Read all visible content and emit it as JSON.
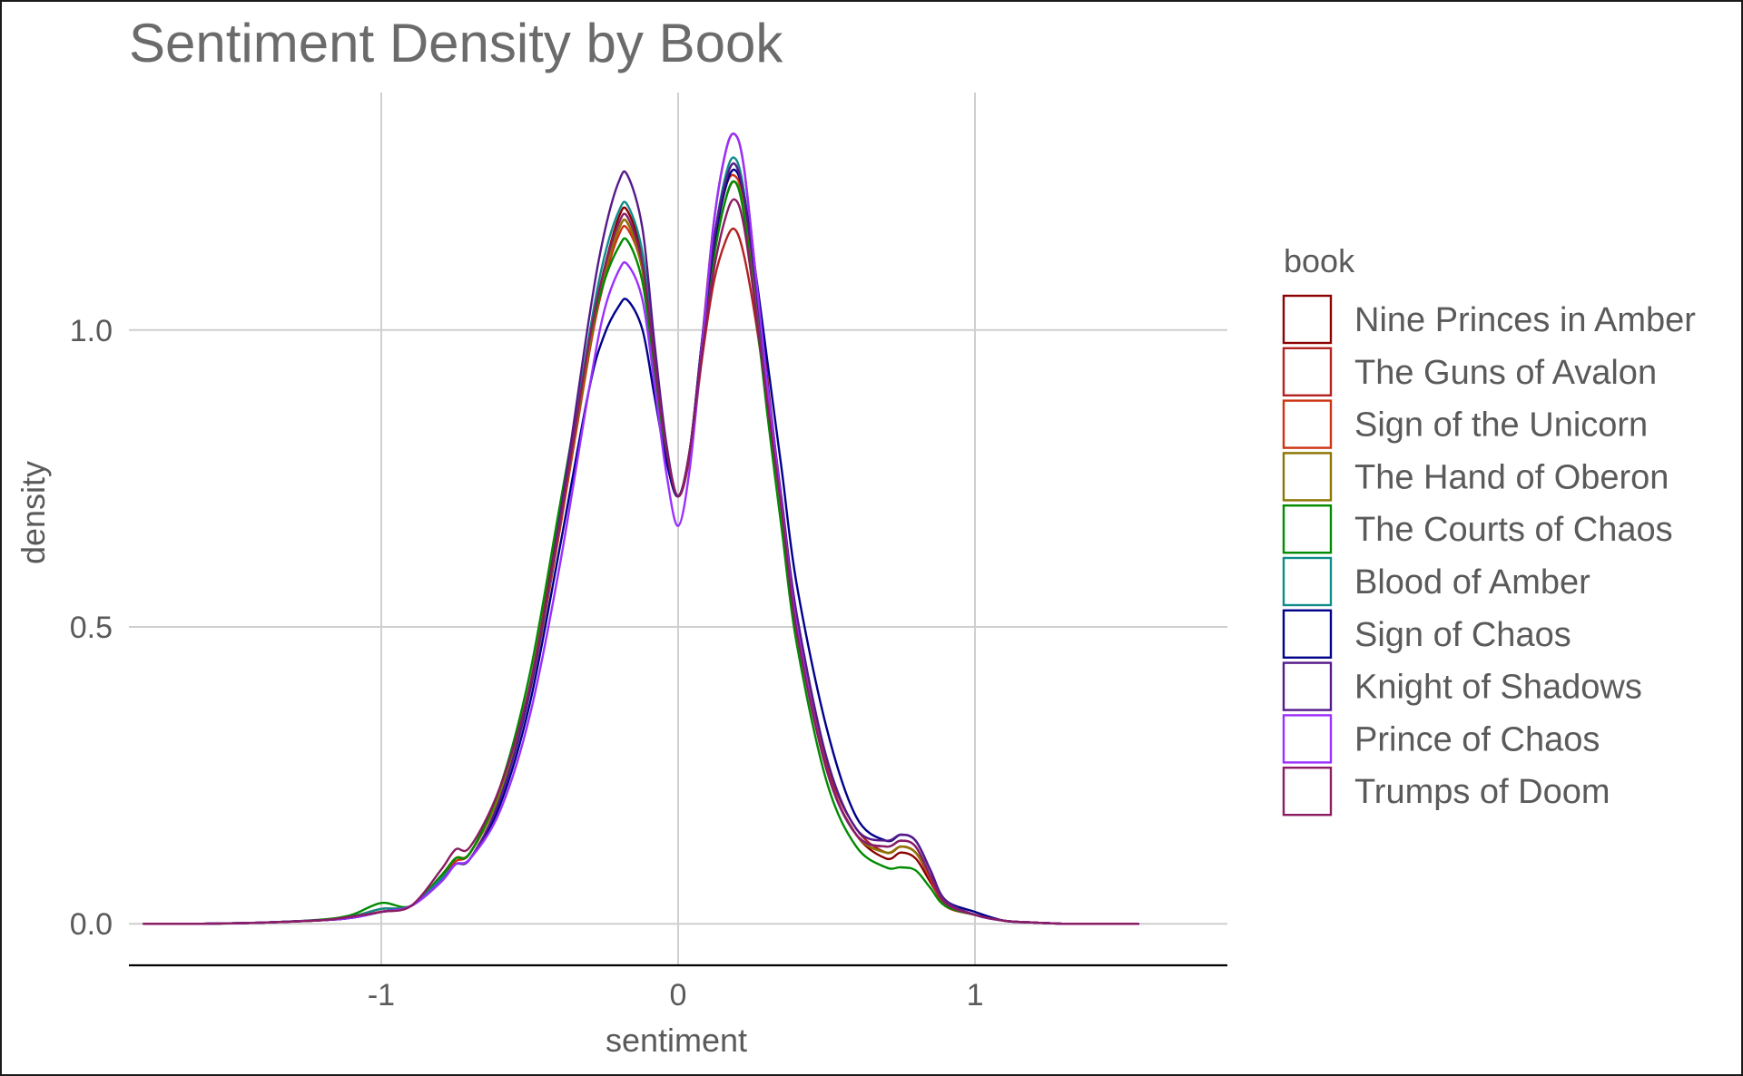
{
  "chart_data": {
    "type": "line",
    "title": "Sentiment Density by Book",
    "xlabel": "sentiment",
    "ylabel": "density",
    "xlim": [
      -1.85,
      1.85
    ],
    "ylim": [
      -0.07,
      1.4
    ],
    "x_ticks": [
      -1,
      0,
      1
    ],
    "x_tick_labels": [
      "-1",
      "0",
      "1"
    ],
    "y_ticks": [
      0,
      0.5,
      1
    ],
    "y_tick_labels": [
      "0.0",
      "0.5",
      "1.0"
    ],
    "grid": true,
    "legend": {
      "title": "book",
      "placement": "right"
    },
    "x": [
      -1.8,
      -1.6,
      -1.4,
      -1.2,
      -1.1,
      -1.0,
      -0.9,
      -0.8,
      -0.75,
      -0.7,
      -0.6,
      -0.5,
      -0.4,
      -0.3,
      -0.25,
      -0.2,
      -0.17,
      -0.12,
      -0.08,
      -0.04,
      0.0,
      0.04,
      0.08,
      0.12,
      0.16,
      0.19,
      0.22,
      0.26,
      0.3,
      0.35,
      0.4,
      0.5,
      0.6,
      0.7,
      0.75,
      0.8,
      0.85,
      0.9,
      1.0,
      1.1,
      1.2,
      1.3,
      1.4,
      1.55
    ],
    "series": [
      {
        "name": "Nine Princes in Amber",
        "color": "#8B0000",
        "values": [
          0.0,
          0.0,
          0.002,
          0.006,
          0.01,
          0.02,
          0.03,
          0.08,
          0.11,
          0.12,
          0.22,
          0.4,
          0.68,
          0.98,
          1.1,
          1.19,
          1.2,
          1.12,
          0.95,
          0.8,
          0.72,
          0.8,
          0.98,
          1.18,
          1.3,
          1.33,
          1.28,
          1.1,
          0.92,
          0.7,
          0.5,
          0.26,
          0.15,
          0.11,
          0.12,
          0.11,
          0.07,
          0.035,
          0.015,
          0.005,
          0.002,
          0.0,
          0.0,
          0.0
        ]
      },
      {
        "name": "The Guns of Avalon",
        "color": "#B22222",
        "values": [
          0.0,
          0.0,
          0.002,
          0.006,
          0.01,
          0.02,
          0.03,
          0.08,
          0.11,
          0.12,
          0.22,
          0.39,
          0.66,
          0.97,
          1.09,
          1.17,
          1.18,
          1.1,
          0.94,
          0.8,
          0.72,
          0.79,
          0.95,
          1.08,
          1.15,
          1.17,
          1.13,
          1.02,
          0.88,
          0.7,
          0.5,
          0.27,
          0.16,
          0.12,
          0.13,
          0.12,
          0.08,
          0.035,
          0.015,
          0.005,
          0.002,
          0.0,
          0.0,
          0.0
        ]
      },
      {
        "name": "Sign of the Unicorn",
        "color": "#CC3311",
        "values": [
          0.0,
          0.0,
          0.002,
          0.006,
          0.012,
          0.025,
          0.03,
          0.075,
          0.105,
          0.12,
          0.22,
          0.39,
          0.66,
          0.96,
          1.08,
          1.16,
          1.17,
          1.1,
          0.94,
          0.8,
          0.72,
          0.8,
          0.97,
          1.14,
          1.24,
          1.26,
          1.22,
          1.07,
          0.9,
          0.7,
          0.5,
          0.26,
          0.15,
          0.12,
          0.13,
          0.12,
          0.075,
          0.03,
          0.015,
          0.005,
          0.002,
          0.0,
          0.0,
          0.0
        ]
      },
      {
        "name": "The Hand of Oberon",
        "color": "#8B7500",
        "values": [
          0.0,
          0.0,
          0.002,
          0.006,
          0.012,
          0.025,
          0.03,
          0.08,
          0.11,
          0.12,
          0.22,
          0.4,
          0.67,
          0.97,
          1.09,
          1.17,
          1.18,
          1.1,
          0.94,
          0.8,
          0.72,
          0.8,
          0.97,
          1.13,
          1.22,
          1.25,
          1.21,
          1.06,
          0.89,
          0.69,
          0.5,
          0.26,
          0.15,
          0.12,
          0.13,
          0.12,
          0.08,
          0.035,
          0.015,
          0.005,
          0.002,
          0.0,
          0.0,
          0.0
        ]
      },
      {
        "name": "The Courts of Chaos",
        "color": "#008B00",
        "values": [
          0.0,
          0.0,
          0.002,
          0.007,
          0.015,
          0.035,
          0.03,
          0.08,
          0.11,
          0.12,
          0.23,
          0.42,
          0.7,
          0.98,
          1.08,
          1.14,
          1.15,
          1.08,
          0.93,
          0.79,
          0.72,
          0.8,
          0.97,
          1.12,
          1.22,
          1.25,
          1.2,
          1.04,
          0.86,
          0.66,
          0.47,
          0.24,
          0.13,
          0.095,
          0.095,
          0.09,
          0.06,
          0.03,
          0.015,
          0.005,
          0.002,
          0.0,
          0.0,
          0.0
        ]
      },
      {
        "name": "Blood of Amber",
        "color": "#108B8B",
        "values": [
          0.0,
          0.0,
          0.002,
          0.006,
          0.012,
          0.025,
          0.03,
          0.075,
          0.1,
          0.11,
          0.21,
          0.39,
          0.67,
          0.99,
          1.12,
          1.2,
          1.21,
          1.13,
          0.96,
          0.8,
          0.72,
          0.8,
          0.98,
          1.15,
          1.26,
          1.29,
          1.24,
          1.08,
          0.9,
          0.7,
          0.5,
          0.26,
          0.15,
          0.13,
          0.14,
          0.13,
          0.08,
          0.035,
          0.015,
          0.005,
          0.002,
          0.0,
          0.0,
          0.0
        ]
      },
      {
        "name": "Sign of Chaos",
        "color": "#00008B",
        "values": [
          0.0,
          0.0,
          0.002,
          0.006,
          0.01,
          0.02,
          0.03,
          0.07,
          0.1,
          0.11,
          0.2,
          0.37,
          0.63,
          0.9,
          0.99,
          1.04,
          1.05,
          1.0,
          0.89,
          0.78,
          0.72,
          0.8,
          0.98,
          1.14,
          1.24,
          1.27,
          1.23,
          1.1,
          0.95,
          0.76,
          0.57,
          0.33,
          0.18,
          0.14,
          0.15,
          0.14,
          0.09,
          0.04,
          0.02,
          0.005,
          0.002,
          0.0,
          0.0,
          0.0
        ]
      },
      {
        "name": "Knight of Shadows",
        "color": "#551A8B",
        "values": [
          0.0,
          0.0,
          0.002,
          0.006,
          0.01,
          0.02,
          0.03,
          0.07,
          0.1,
          0.11,
          0.21,
          0.39,
          0.68,
          1.02,
          1.16,
          1.25,
          1.26,
          1.17,
          0.98,
          0.81,
          0.72,
          0.8,
          0.98,
          1.15,
          1.25,
          1.28,
          1.23,
          1.08,
          0.91,
          0.71,
          0.52,
          0.28,
          0.16,
          0.14,
          0.15,
          0.14,
          0.09,
          0.04,
          0.015,
          0.005,
          0.002,
          0.0,
          0.0,
          0.0
        ]
      },
      {
        "name": "Prince of Chaos",
        "color": "#9B30FF",
        "values": [
          0.0,
          0.0,
          0.002,
          0.006,
          0.01,
          0.02,
          0.03,
          0.07,
          0.1,
          0.11,
          0.19,
          0.35,
          0.6,
          0.9,
          1.03,
          1.1,
          1.11,
          1.05,
          0.91,
          0.76,
          0.67,
          0.77,
          0.97,
          1.18,
          1.3,
          1.33,
          1.28,
          1.1,
          0.91,
          0.7,
          0.5,
          0.26,
          0.15,
          0.13,
          0.14,
          0.13,
          0.08,
          0.035,
          0.015,
          0.005,
          0.002,
          0.0,
          0.0,
          0.0
        ]
      },
      {
        "name": "Trumps of Doom",
        "color": "#8B1C62",
        "values": [
          0.0,
          0.0,
          0.002,
          0.006,
          0.012,
          0.02,
          0.03,
          0.09,
          0.125,
          0.13,
          0.23,
          0.4,
          0.67,
          0.98,
          1.1,
          1.18,
          1.19,
          1.11,
          0.95,
          0.8,
          0.72,
          0.8,
          0.96,
          1.1,
          1.19,
          1.22,
          1.18,
          1.04,
          0.88,
          0.69,
          0.49,
          0.26,
          0.15,
          0.13,
          0.14,
          0.13,
          0.08,
          0.035,
          0.015,
          0.005,
          0.002,
          0.0,
          0.0,
          0.0
        ]
      }
    ]
  }
}
